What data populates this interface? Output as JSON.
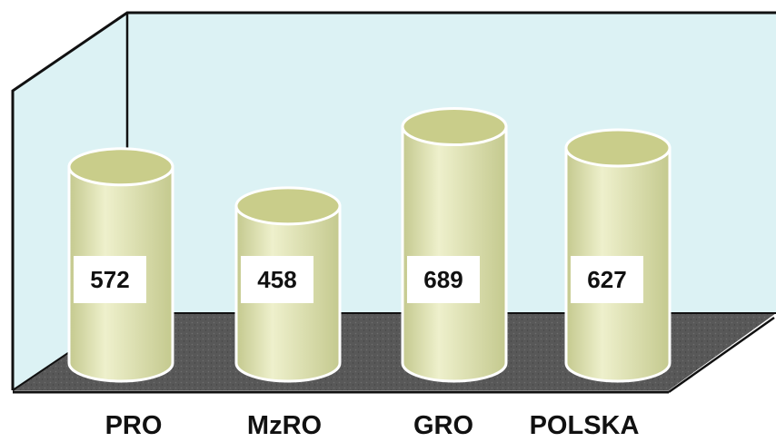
{
  "chart_data": {
    "type": "bar",
    "bar_shape": "cylinder",
    "categories": [
      "PRO",
      "MzRO",
      "GRO",
      "POLSKA"
    ],
    "values": [
      572,
      458,
      689,
      627
    ],
    "title": "",
    "xlabel": "",
    "ylabel": "",
    "ylim": [
      0,
      760
    ],
    "grid": false,
    "legend": "none",
    "colors": {
      "back_wall": "#dcf2f4",
      "floor": "#585858",
      "cylinder_body": "#e4e7b8",
      "cylinder_shade": "#c4c98e",
      "cylinder_top": "#c9cd8a",
      "outline": "#111111"
    }
  }
}
